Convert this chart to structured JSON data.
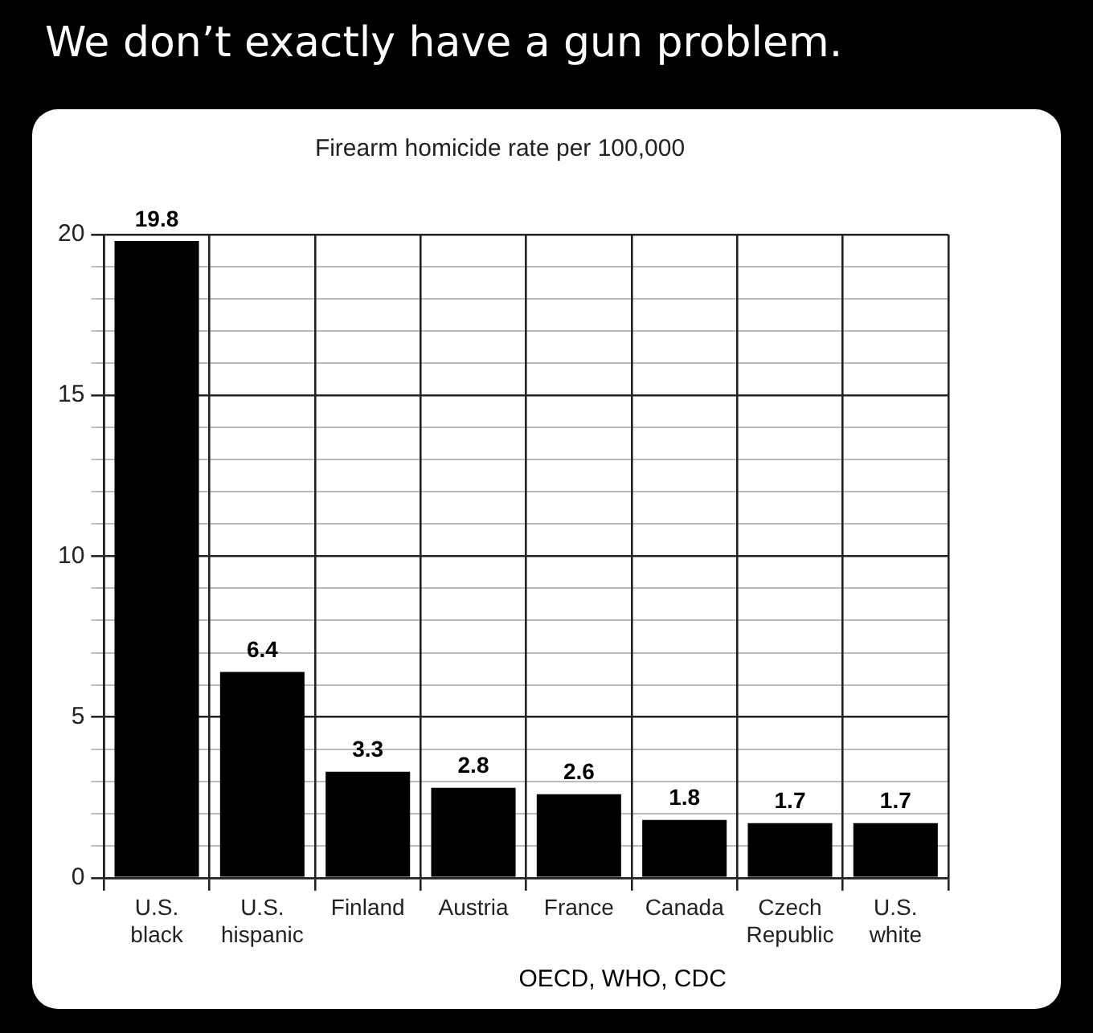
{
  "chart_data": {
    "type": "bar",
    "title": "We don’t exactly have a gun problem.",
    "subtitle": "Firearm homicide rate per 100,000",
    "categories": [
      "U.S.\nblack",
      "U.S.\nhispanic",
      "Finland",
      "Austria",
      "France",
      "Canada",
      "Czech\nRepublic",
      "U.S.\nwhite"
    ],
    "values": [
      19.8,
      6.4,
      3.3,
      2.8,
      2.6,
      1.8,
      1.7,
      1.7
    ],
    "color": "#000000",
    "ylim": [
      0,
      20
    ],
    "yticks": [
      0,
      {
        "value": 1,
        "label": null
      },
      {
        "value": 2,
        "label": null
      },
      {
        "value": 3,
        "label": null
      },
      {
        "value": 4,
        "label": null
      },
      5,
      {
        "value": 6,
        "label": null
      },
      {
        "value": 7,
        "label": null
      },
      {
        "value": 8,
        "label": null
      },
      {
        "value": 9,
        "label": null
      },
      10,
      {
        "value": 11,
        "label": null
      },
      {
        "value": 12,
        "label": null
      },
      {
        "value": 13,
        "label": null
      },
      {
        "value": 14,
        "label": null
      },
      15,
      {
        "value": 16,
        "label": null
      },
      {
        "value": 17,
        "label": null
      },
      {
        "value": 18,
        "label": null
      },
      {
        "value": 19,
        "label": null
      },
      20
    ],
    "grid": true,
    "data_labels": true,
    "annotations": [
      "OECD, WHO, CDC"
    ]
  }
}
